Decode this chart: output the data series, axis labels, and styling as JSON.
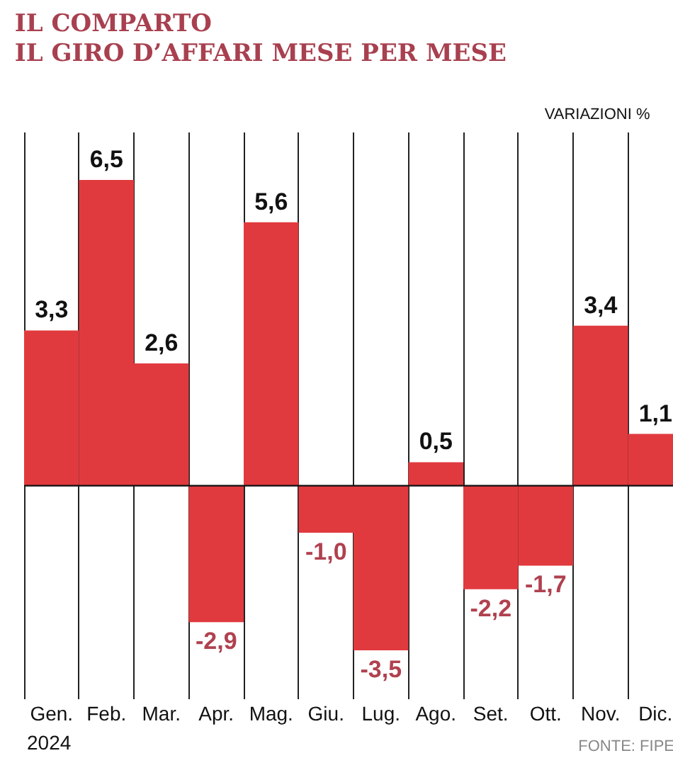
{
  "chart_data": {
    "type": "bar",
    "title": "IL COMPARTO",
    "subtitle": "IL GIRO D’AFFARI MESE PER MESE",
    "ylabel": "VARIAZIONI %",
    "categories": [
      "Gen.",
      "Feb.",
      "Mar.",
      "Apr.",
      "Mag.",
      "Giu.",
      "Lug.",
      "Ago.",
      "Set.",
      "Ott.",
      "Nov.",
      "Dic."
    ],
    "values": [
      3.3,
      6.5,
      2.6,
      -2.9,
      5.6,
      -1.0,
      -3.5,
      0.5,
      -2.2,
      -1.7,
      3.4,
      1.1
    ],
    "value_labels": [
      "3,3",
      "6,5",
      "2,6",
      "-2,9",
      "5,6",
      "-1,0",
      "-3,5",
      "0,5",
      "-2,2",
      "-1,7",
      "3,4",
      "1,1"
    ],
    "color": "#e03a3e",
    "grid": "x",
    "annotations": [
      "2024",
      "FONTE: FIPE"
    ]
  }
}
